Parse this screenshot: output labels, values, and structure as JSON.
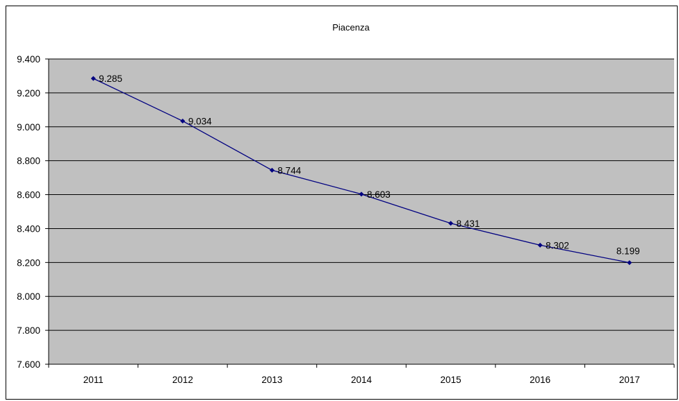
{
  "chart_data": {
    "type": "line",
    "title": "Piacenza",
    "xlabel": "",
    "ylabel": "",
    "categories": [
      "2011",
      "2012",
      "2013",
      "2014",
      "2015",
      "2016",
      "2017"
    ],
    "series": [
      {
        "values": [
          9285,
          9034,
          8744,
          8603,
          8431,
          8302,
          8199
        ],
        "labels": [
          "9.285",
          "9.034",
          "8.744",
          "8.603",
          "8.431",
          "8.302",
          "8.199"
        ]
      }
    ],
    "ylim": [
      7600,
      9400
    ],
    "yticks": [
      7600,
      7800,
      8000,
      8200,
      8400,
      8600,
      8800,
      9000,
      9200,
      9400
    ],
    "ytick_labels": [
      "7.600",
      "7.800",
      "8.000",
      "8.200",
      "8.400",
      "8.600",
      "8.800",
      "9.000",
      "9.200",
      "9.400"
    ],
    "grid": true,
    "legend": "none",
    "colors": {
      "plot_background": "#c0c0c0",
      "line": "#000080",
      "marker": "#000080",
      "gridline": "#000000"
    }
  }
}
